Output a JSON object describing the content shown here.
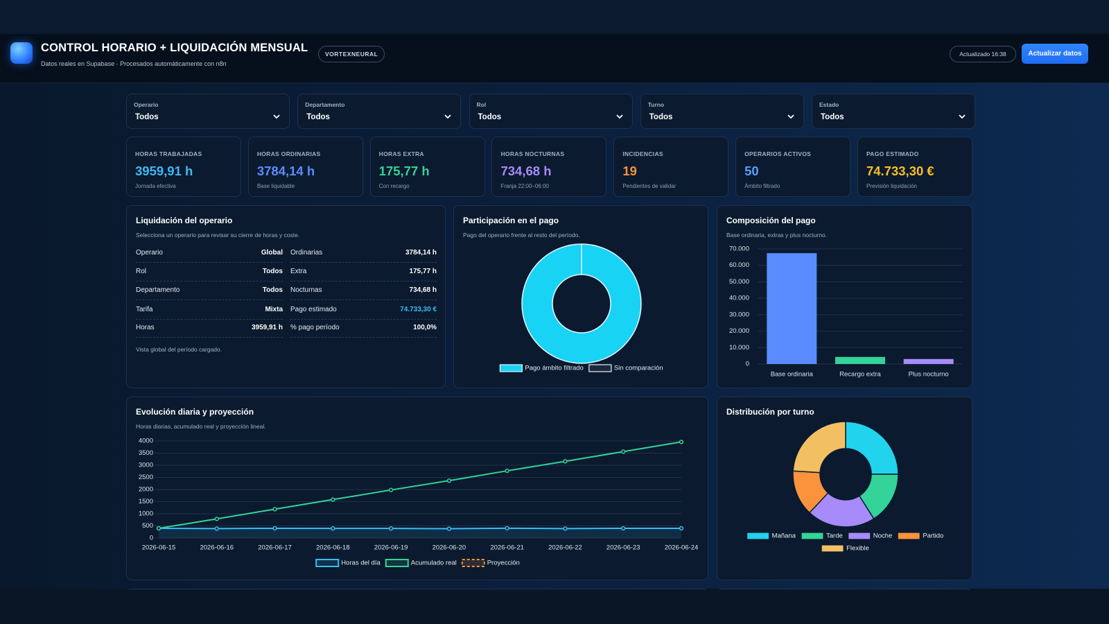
{
  "header": {
    "title": "CONTROL HORARIO + LIQUIDACIÓN MENSUAL",
    "subtitle": "Datos reales en Supabase · Procesados automáticamente con n8n",
    "badge": "VORTEXNEURAL",
    "updated": "Actualizado 16:38",
    "button": "Actualizar datos"
  },
  "filters": [
    {
      "label": "Operario",
      "value": "Todos"
    },
    {
      "label": "Departamento",
      "value": "Todos"
    },
    {
      "label": "Rol",
      "value": "Todos"
    },
    {
      "label": "Turno",
      "value": "Todos"
    },
    {
      "label": "Estado",
      "value": "Todos"
    }
  ],
  "kpis": [
    {
      "label": "HORAS TRABAJADAS",
      "value": "3959,91 h",
      "note": "Jornada efectiva",
      "color": "#41b8f5"
    },
    {
      "label": "HORAS ORDINARIAS",
      "value": "3784,14 h",
      "note": "Base liquidable",
      "color": "#5b8cff"
    },
    {
      "label": "HORAS EXTRA",
      "value": "175,77 h",
      "note": "Con recargo",
      "color": "#34d399"
    },
    {
      "label": "HORAS NOCTURNAS",
      "value": "734,68 h",
      "note": "Franja 22:00–06:00",
      "color": "#a78bfa"
    },
    {
      "label": "INCIDENCIAS",
      "value": "19",
      "note": "Pendientes de validar",
      "color": "#fb923c"
    },
    {
      "label": "OPERARIOS ACTIVOS",
      "value": "50",
      "note": "Ámbito filtrado",
      "color": "#5b9dff"
    },
    {
      "label": "PAGO ESTIMADO",
      "value": "74.733,30 €",
      "note": "Previsión liquidación",
      "color": "#fbbf24"
    }
  ],
  "settlement": {
    "title": "Liquidación del operario",
    "subtitle": "Selecciona un operario para revisar su cierre de horas y coste.",
    "rows": [
      [
        "Operario",
        "Global",
        "Ordinarias",
        "3784,14 h"
      ],
      [
        "Rol",
        "Todos",
        "Extra",
        "175,77 h"
      ],
      [
        "Departamento",
        "Todos",
        "Nocturnas",
        "734,68 h"
      ],
      [
        "Tarifa",
        "Mixta",
        "Pago estimado",
        "74.733,30 €"
      ],
      [
        "Horas",
        "3959,91 h",
        "% pago período",
        "100,0%"
      ]
    ],
    "footnote": "Vista global del período cargado."
  },
  "charts": [
    {
      "type": "donut",
      "title": "Participación en el pago",
      "subtitle": "Pago del operario frente al resto del período.",
      "categories": [
        "Pago ámbito filtrado",
        "Sin comparación"
      ],
      "values": [
        100,
        0
      ],
      "colors": [
        "#19d3f5",
        "#1e293b"
      ],
      "border_color": "#e6f7ff"
    },
    {
      "type": "bar",
      "title": "Composición del pago",
      "subtitle": "Base ordinaria, extras y plus nocturno.",
      "categories": [
        "Base ordinaria",
        "Recargo extra",
        "Plus nocturno"
      ],
      "values": [
        67400,
        4300,
        3033
      ],
      "colors": [
        "#5b8cff",
        "#34d399",
        "#a78bfa"
      ],
      "ylim": [
        0,
        70000
      ],
      "yticks": [
        0,
        {
          "value": 10000,
          "label": "10.000"
        },
        {
          "value": 20000,
          "label": "20.000"
        },
        {
          "value": 30000,
          "label": "30.000"
        },
        {
          "value": 40000,
          "label": "40.000"
        },
        {
          "value": 50000,
          "label": "50.000"
        },
        {
          "value": 60000,
          "label": "60.000"
        },
        {
          "value": 70000,
          "label": "70.000"
        }
      ],
      "grid": true
    },
    {
      "type": "line",
      "title": "Evolución diaria y proyección",
      "subtitle": "Horas diarias, acumulado real y proyección lineal.",
      "categories": [
        "2026-06-15",
        "2026-06-16",
        "2026-06-17",
        "2026-06-18",
        "2026-06-19",
        "2026-06-20",
        "2026-06-21",
        "2026-06-22",
        "2026-06-23",
        "2026-06-24"
      ],
      "series": [
        {
          "name": "Horas del día",
          "color": "#38bdf8",
          "area": true,
          "values": [
            400,
            390,
            400,
            395,
            395,
            385,
            405,
            390,
            400,
            400
          ]
        },
        {
          "name": "Acumulado real",
          "color": "#34d399",
          "values": [
            400,
            790,
            1190,
            1585,
            1980,
            2365,
            2770,
            3160,
            3560,
            3960
          ]
        },
        {
          "name": "Proyección",
          "color": "#fb923c",
          "dash": true,
          "values": [
            null,
            null,
            null,
            null,
            null,
            null,
            null,
            null,
            null,
            null
          ]
        }
      ],
      "ylim": [
        0,
        4000
      ],
      "yticks": [
        0,
        500,
        1000,
        1500,
        2000,
        2500,
        3000,
        3500,
        4000
      ],
      "grid": true
    },
    {
      "type": "donut",
      "title": "Distribución por turno",
      "categories": [
        "Mañana",
        "Tarde",
        "Noche",
        "Partido",
        "Flexible"
      ],
      "values": [
        25,
        16,
        21,
        14,
        24
      ],
      "colors": [
        "#22d3ee",
        "#34d399",
        "#a78bfa",
        "#fb923c",
        "#f2c063"
      ],
      "border_color": "#0b1a2e"
    }
  ]
}
